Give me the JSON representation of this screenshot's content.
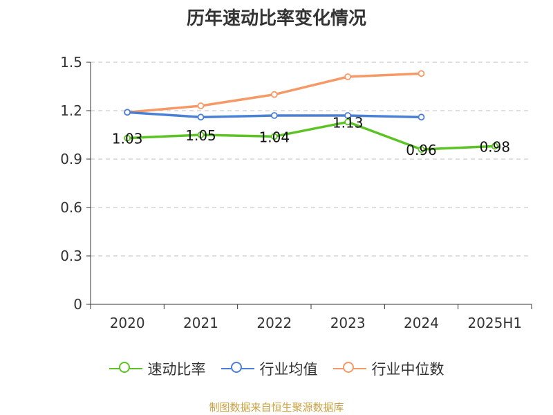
{
  "chart_data": {
    "type": "line",
    "title": "历年速动比率变化情况",
    "categories": [
      "2020",
      "2021",
      "2022",
      "2023",
      "2024",
      "2025H1"
    ],
    "ylim": [
      0,
      1.5
    ],
    "yticks": [
      "0",
      "0.3",
      "0.6",
      "0.9",
      "1.2",
      "1.5"
    ],
    "grid": true,
    "legend_position": "bottom",
    "series": [
      {
        "name": "速动比率",
        "color": "#5cc324",
        "values": [
          1.03,
          1.05,
          1.04,
          1.13,
          0.96,
          0.98
        ],
        "labels": [
          "1.03",
          "1.05",
          "1.04",
          "1.13",
          "0.96",
          "0.98"
        ]
      },
      {
        "name": "行业均值",
        "color": "#4a7fd6",
        "values": [
          1.19,
          1.16,
          1.17,
          1.17,
          1.16,
          null
        ]
      },
      {
        "name": "行业中位数",
        "color": "#f59a66",
        "values": [
          1.19,
          1.23,
          1.3,
          1.41,
          1.43,
          null
        ]
      }
    ]
  },
  "source": "制图数据来自恒生聚源数据库"
}
